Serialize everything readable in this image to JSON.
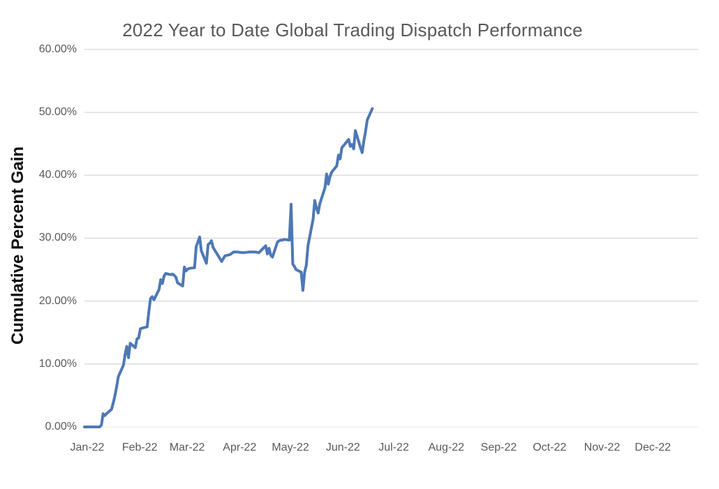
{
  "title": "2022 Year to Date Global Trading Dispatch Performance",
  "chart_data": {
    "type": "line",
    "title": "2022 Year to Date Global Trading Dispatch Performance",
    "xlabel": "",
    "ylabel": "Cumulative Percent Gain",
    "x_tick_labels": [
      "Jan-22",
      "Feb-22",
      "Mar-22",
      "Apr-22",
      "May-22",
      "Jun-22",
      "Jul-22",
      "Aug-22",
      "Sep-22",
      "Oct-22",
      "Nov-22",
      "Dec-22"
    ],
    "y_tick_labels": [
      "0.00%",
      "10.00%",
      "20.00%",
      "30.00%",
      "40.00%",
      "50.00%",
      "60.00%"
    ],
    "y_ticks": [
      0,
      10,
      20,
      30,
      40,
      50,
      60
    ],
    "ylim": [
      0,
      60
    ],
    "x_range": [
      "2022-01-01",
      "2022-12-31"
    ],
    "grid": "horizontal-major",
    "legend": "none",
    "colors": {
      "line": "#4e78b6",
      "grid": "#d9d9d9",
      "grid_zero": "#efefef",
      "title_text": "#595959",
      "tick_text": "#595959",
      "axis_title_text": "#0d0d0d",
      "background": "#ffffff"
    },
    "series": [
      {
        "name": "Cumulative Percent Gain",
        "points": [
          [
            "2022-01-01",
            0.0
          ],
          [
            "2022-01-05",
            0.0
          ],
          [
            "2022-01-10",
            0.0
          ],
          [
            "2022-01-11",
            0.3
          ],
          [
            "2022-01-12",
            2.1
          ],
          [
            "2022-01-13",
            1.8
          ],
          [
            "2022-01-14",
            2.1
          ],
          [
            "2022-01-17",
            2.8
          ],
          [
            "2022-01-18",
            3.8
          ],
          [
            "2022-01-19",
            5.0
          ],
          [
            "2022-01-20",
            6.4
          ],
          [
            "2022-01-21",
            8.0
          ],
          [
            "2022-01-24",
            9.8
          ],
          [
            "2022-01-25",
            11.5
          ],
          [
            "2022-01-26",
            12.8
          ],
          [
            "2022-01-27",
            11.0
          ],
          [
            "2022-01-28",
            13.3
          ],
          [
            "2022-01-31",
            12.6
          ],
          [
            "2022-02-01",
            14.0
          ],
          [
            "2022-02-02",
            14.1
          ],
          [
            "2022-02-03",
            15.6
          ],
          [
            "2022-02-04",
            15.7
          ],
          [
            "2022-02-07",
            15.9
          ],
          [
            "2022-02-08",
            18.3
          ],
          [
            "2022-02-09",
            20.4
          ],
          [
            "2022-02-10",
            20.7
          ],
          [
            "2022-02-11",
            20.2
          ],
          [
            "2022-02-14",
            21.8
          ],
          [
            "2022-02-15",
            23.4
          ],
          [
            "2022-02-16",
            22.8
          ],
          [
            "2022-02-17",
            24.0
          ],
          [
            "2022-02-18",
            24.4
          ],
          [
            "2022-02-21",
            24.2
          ],
          [
            "2022-02-22",
            24.3
          ],
          [
            "2022-02-23",
            24.1
          ],
          [
            "2022-02-24",
            23.8
          ],
          [
            "2022-02-25",
            22.9
          ],
          [
            "2022-02-28",
            22.4
          ],
          [
            "2022-03-01",
            25.4
          ],
          [
            "2022-03-02",
            24.8
          ],
          [
            "2022-03-03",
            25.1
          ],
          [
            "2022-03-04",
            25.2
          ],
          [
            "2022-03-07",
            25.3
          ],
          [
            "2022-03-08",
            28.7
          ],
          [
            "2022-03-09",
            29.4
          ],
          [
            "2022-03-10",
            30.2
          ],
          [
            "2022-03-11",
            28.0
          ],
          [
            "2022-03-14",
            26.0
          ],
          [
            "2022-03-15",
            29.0
          ],
          [
            "2022-03-16",
            29.2
          ],
          [
            "2022-03-17",
            29.6
          ],
          [
            "2022-03-18",
            28.5
          ],
          [
            "2022-03-21",
            27.2
          ],
          [
            "2022-03-23",
            26.3
          ],
          [
            "2022-03-25",
            27.2
          ],
          [
            "2022-03-28",
            27.4
          ],
          [
            "2022-03-30",
            27.8
          ],
          [
            "2022-04-01",
            27.8
          ],
          [
            "2022-04-05",
            27.7
          ],
          [
            "2022-04-08",
            27.8
          ],
          [
            "2022-04-12",
            27.8
          ],
          [
            "2022-04-14",
            27.7
          ],
          [
            "2022-04-18",
            28.8
          ],
          [
            "2022-04-19",
            27.5
          ],
          [
            "2022-04-20",
            28.4
          ],
          [
            "2022-04-21",
            27.3
          ],
          [
            "2022-04-22",
            27.0
          ],
          [
            "2022-04-25",
            29.4
          ],
          [
            "2022-04-26",
            29.6
          ],
          [
            "2022-04-27",
            29.7
          ],
          [
            "2022-04-28",
            29.7
          ],
          [
            "2022-04-29",
            29.8
          ],
          [
            "2022-05-02",
            29.7
          ],
          [
            "2022-05-03",
            35.4
          ],
          [
            "2022-05-04",
            25.9
          ],
          [
            "2022-05-05",
            25.5
          ],
          [
            "2022-05-06",
            25.0
          ],
          [
            "2022-05-09",
            24.6
          ],
          [
            "2022-05-10",
            21.7
          ],
          [
            "2022-05-11",
            24.6
          ],
          [
            "2022-05-12",
            25.7
          ],
          [
            "2022-05-13",
            28.8
          ],
          [
            "2022-05-16",
            33.0
          ],
          [
            "2022-05-17",
            36.0
          ],
          [
            "2022-05-18",
            34.8
          ],
          [
            "2022-05-19",
            34.0
          ],
          [
            "2022-05-20",
            35.5
          ],
          [
            "2022-05-23",
            38.0
          ],
          [
            "2022-05-24",
            40.2
          ],
          [
            "2022-05-25",
            38.6
          ],
          [
            "2022-05-26",
            39.8
          ],
          [
            "2022-05-27",
            40.5
          ],
          [
            "2022-05-30",
            41.5
          ],
          [
            "2022-05-31",
            43.2
          ],
          [
            "2022-06-01",
            42.6
          ],
          [
            "2022-06-02",
            44.4
          ],
          [
            "2022-06-03",
            44.7
          ],
          [
            "2022-06-06",
            45.7
          ],
          [
            "2022-06-07",
            44.6
          ],
          [
            "2022-06-08",
            44.9
          ],
          [
            "2022-06-09",
            44.2
          ],
          [
            "2022-06-10",
            47.1
          ],
          [
            "2022-06-13",
            44.4
          ],
          [
            "2022-06-14",
            43.6
          ],
          [
            "2022-06-15",
            45.5
          ],
          [
            "2022-06-16",
            47.0
          ],
          [
            "2022-06-17",
            48.8
          ],
          [
            "2022-06-20",
            50.6
          ]
        ]
      }
    ]
  }
}
